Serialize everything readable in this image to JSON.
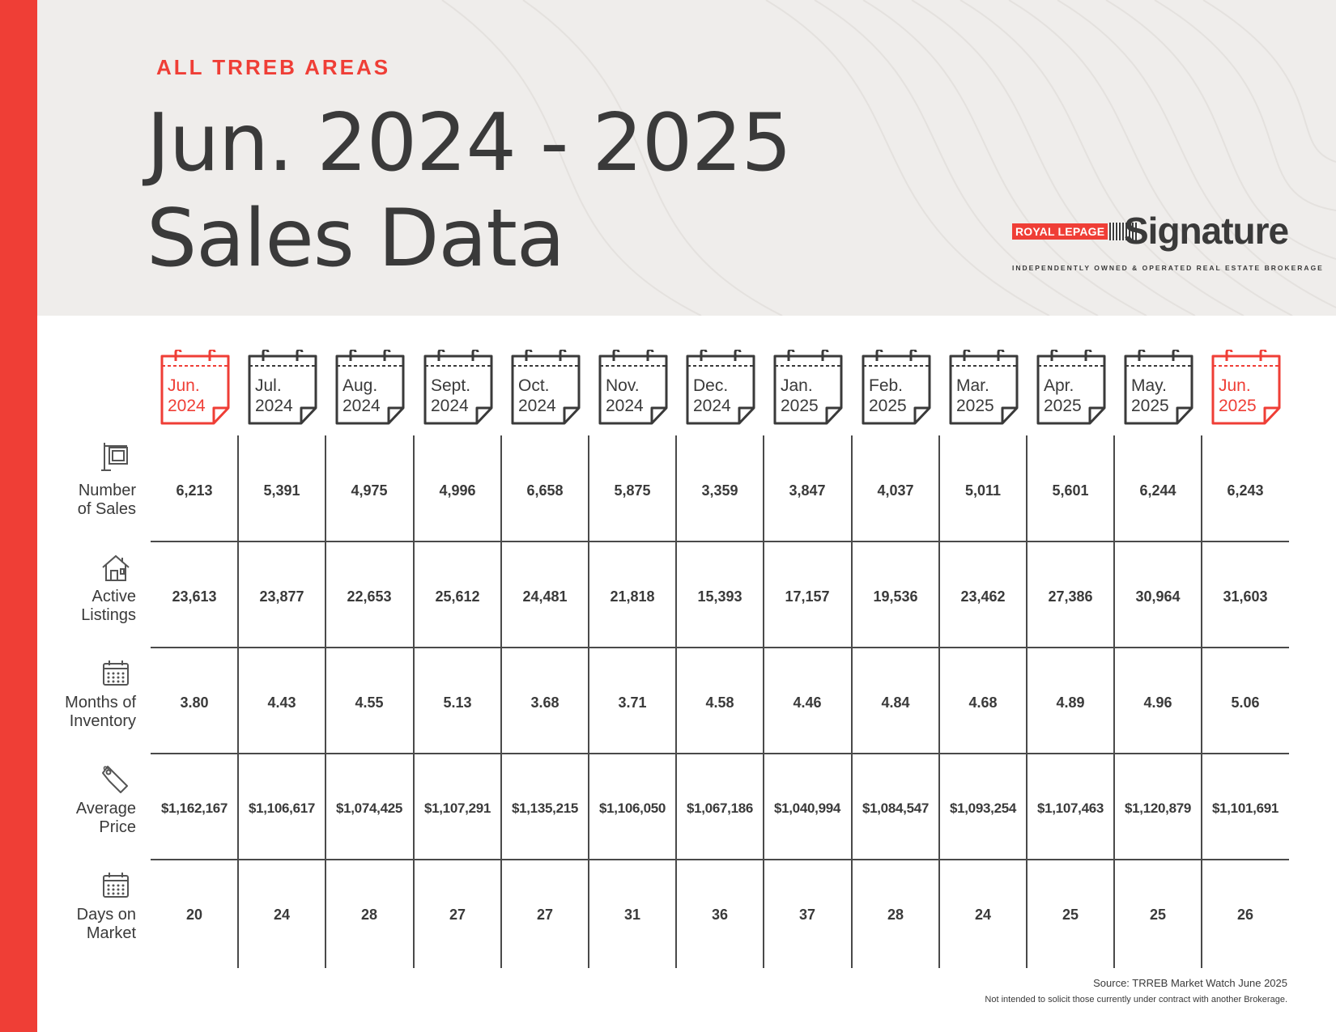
{
  "header": {
    "kicker": "ALL TRREB AREAS",
    "title_line1": "Jun. 2024 - 2025",
    "title_line2": "Sales Data"
  },
  "logo": {
    "brand": "ROYAL LEPAGE",
    "word": "Signature",
    "tagline": "INDEPENDENTLY OWNED & OPERATED REAL ESTATE BROKERAGE"
  },
  "colors": {
    "accent": "#ef3e36",
    "text": "#3a3a3a",
    "header_bg": "#efedeb"
  },
  "months": [
    {
      "m": "Jun.",
      "y": "2024",
      "highlight": true
    },
    {
      "m": "Jul.",
      "y": "2024",
      "highlight": false
    },
    {
      "m": "Aug.",
      "y": "2024",
      "highlight": false
    },
    {
      "m": "Sept.",
      "y": "2024",
      "highlight": false
    },
    {
      "m": "Oct.",
      "y": "2024",
      "highlight": false
    },
    {
      "m": "Nov.",
      "y": "2024",
      "highlight": false
    },
    {
      "m": "Dec.",
      "y": "2024",
      "highlight": false
    },
    {
      "m": "Jan.",
      "y": "2025",
      "highlight": false
    },
    {
      "m": "Feb.",
      "y": "2025",
      "highlight": false
    },
    {
      "m": "Mar.",
      "y": "2025",
      "highlight": false
    },
    {
      "m": "Apr.",
      "y": "2025",
      "highlight": false
    },
    {
      "m": "May.",
      "y": "2025",
      "highlight": false
    },
    {
      "m": "Jun.",
      "y": "2025",
      "highlight": true
    }
  ],
  "rows": [
    {
      "icon": "sign-icon",
      "label1": "Number",
      "label2": "of Sales"
    },
    {
      "icon": "house-icon",
      "label1": "Active",
      "label2": "Listings"
    },
    {
      "icon": "calendar-icon",
      "label1": "Months of",
      "label2": "Inventory"
    },
    {
      "icon": "price-tag-icon",
      "label1": "Average",
      "label2": "Price"
    },
    {
      "icon": "calendar-icon",
      "label1": "Days on",
      "label2": "Market"
    }
  ],
  "chart_data": {
    "type": "table",
    "title": "Jun. 2024 - 2025 Sales Data",
    "columns": [
      "Jun. 2024",
      "Jul. 2024",
      "Aug. 2024",
      "Sept. 2024",
      "Oct. 2024",
      "Nov. 2024",
      "Dec. 2024",
      "Jan. 2025",
      "Feb. 2025",
      "Mar. 2025",
      "Apr. 2025",
      "May. 2025",
      "Jun. 2025"
    ],
    "series": [
      {
        "name": "Number of Sales",
        "values": [
          "6,213",
          "5,391",
          "4,975",
          "4,996",
          "6,658",
          "5,875",
          "3,359",
          "3,847",
          "4,037",
          "5,011",
          "5,601",
          "6,244",
          "6,243"
        ]
      },
      {
        "name": "Active Listings",
        "values": [
          "23,613",
          "23,877",
          "22,653",
          "25,612",
          "24,481",
          "21,818",
          "15,393",
          "17,157",
          "19,536",
          "23,462",
          "27,386",
          "30,964",
          "31,603"
        ]
      },
      {
        "name": "Months of Inventory",
        "values": [
          "3.80",
          "4.43",
          "4.55",
          "5.13",
          "3.68",
          "3.71",
          "4.58",
          "4.46",
          "4.84",
          "4.68",
          "4.89",
          "4.96",
          "5.06"
        ]
      },
      {
        "name": "Average Price",
        "values": [
          "$1,162,167",
          "$1,106,617",
          "$1,074,425",
          "$1,107,291",
          "$1,135,215",
          "$1,106,050",
          "$1,067,186",
          "$1,040,994",
          "$1,084,547",
          "$1,093,254",
          "$1,107,463",
          "$1,120,879",
          "$1,101,691"
        ]
      },
      {
        "name": "Days on Market",
        "values": [
          "20",
          "24",
          "28",
          "27",
          "27",
          "31",
          "36",
          "37",
          "28",
          "24",
          "25",
          "25",
          "26"
        ]
      }
    ]
  },
  "footer": {
    "source": "Source: TRREB Market Watch June 2025",
    "disclaimer": "Not intended to solicit those currently under contract with another Brokerage."
  }
}
